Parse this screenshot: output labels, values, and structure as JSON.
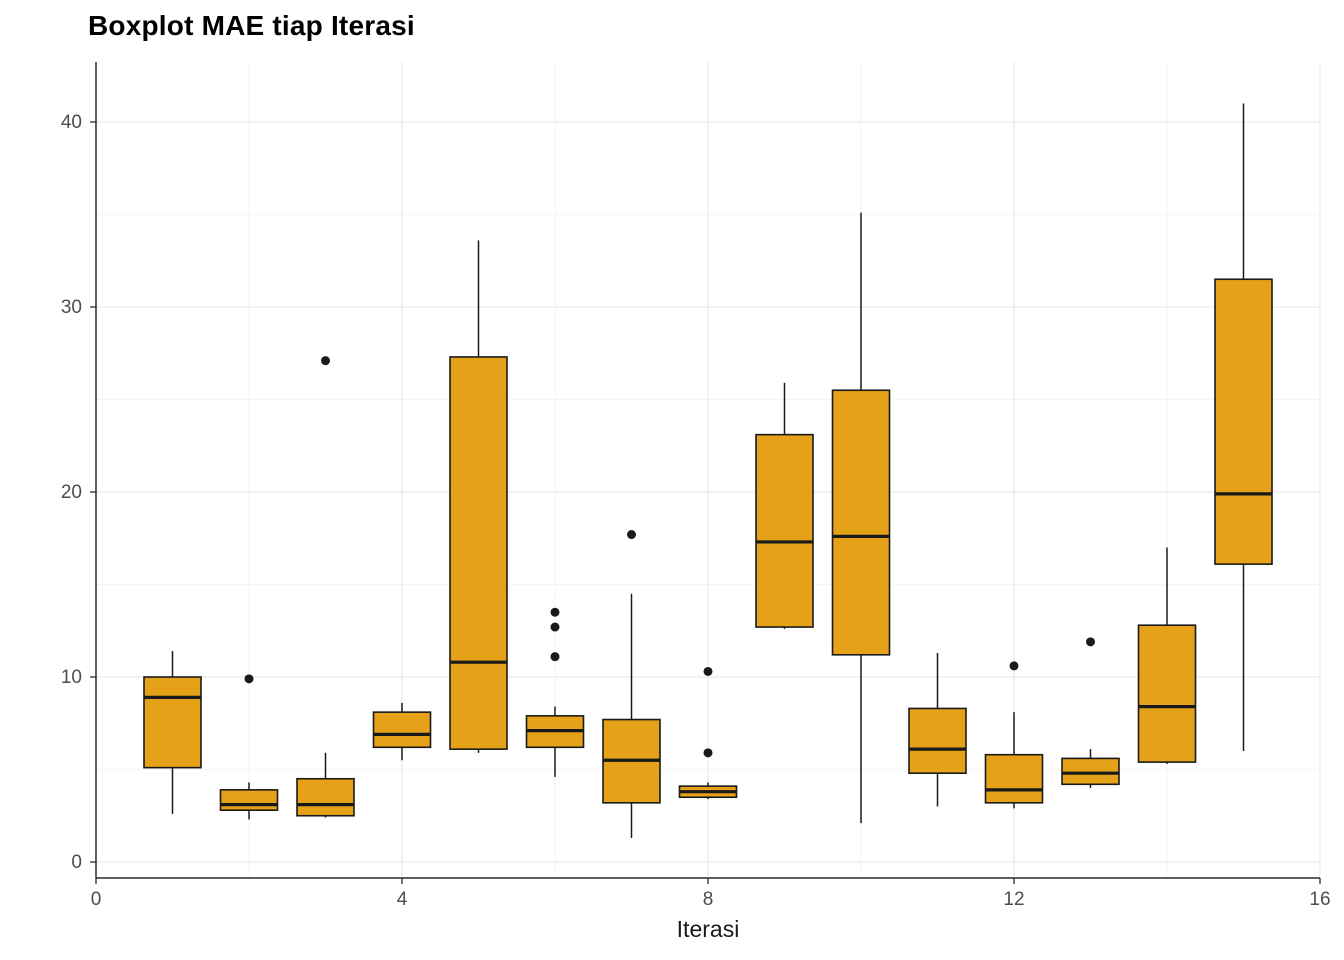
{
  "chart_data": {
    "type": "boxplot",
    "title": "Boxplot MAE tiap Iterasi",
    "xlabel": "Iterasi",
    "ylabel": "",
    "xlim": [
      0,
      16
    ],
    "ylim": [
      0,
      43
    ],
    "x_ticks": [
      0,
      4,
      8,
      12,
      16
    ],
    "y_ticks": [
      0,
      10,
      20,
      30,
      40
    ],
    "grid": "on",
    "legend": "none",
    "box_fill": "#E5A117",
    "box_stroke": "#1A1A1A",
    "outlier_color": "#1A1A1A",
    "boxes": [
      {
        "x": 1,
        "low": 2.6,
        "q1": 5.1,
        "median": 8.9,
        "q3": 10.0,
        "high": 11.4,
        "outliers": []
      },
      {
        "x": 2,
        "low": 2.3,
        "q1": 2.8,
        "median": 3.1,
        "q3": 3.9,
        "high": 4.3,
        "outliers": [
          9.9
        ]
      },
      {
        "x": 3,
        "low": 2.4,
        "q1": 2.5,
        "median": 3.1,
        "q3": 4.5,
        "high": 5.9,
        "outliers": [
          27.1
        ]
      },
      {
        "x": 4,
        "low": 5.5,
        "q1": 6.2,
        "median": 6.9,
        "q3": 8.1,
        "high": 8.6,
        "outliers": []
      },
      {
        "x": 5,
        "low": 5.9,
        "q1": 6.1,
        "median": 10.8,
        "q3": 27.3,
        "high": 33.6,
        "outliers": []
      },
      {
        "x": 6,
        "low": 4.6,
        "q1": 6.2,
        "median": 7.1,
        "q3": 7.9,
        "high": 8.4,
        "outliers": [
          11.1,
          12.7,
          13.5
        ]
      },
      {
        "x": 7,
        "low": 1.3,
        "q1": 3.2,
        "median": 5.5,
        "q3": 7.7,
        "high": 14.5,
        "outliers": [
          17.7
        ]
      },
      {
        "x": 8,
        "low": 3.4,
        "q1": 3.5,
        "median": 3.8,
        "q3": 4.1,
        "high": 4.3,
        "outliers": [
          5.9,
          10.3
        ]
      },
      {
        "x": 9,
        "low": 12.6,
        "q1": 12.7,
        "median": 17.3,
        "q3": 23.1,
        "high": 25.9,
        "outliers": []
      },
      {
        "x": 10,
        "low": 2.1,
        "q1": 11.2,
        "median": 17.6,
        "q3": 25.5,
        "high": 35.1,
        "outliers": []
      },
      {
        "x": 11,
        "low": 3.0,
        "q1": 4.8,
        "median": 6.1,
        "q3": 8.3,
        "high": 11.3,
        "outliers": []
      },
      {
        "x": 12,
        "low": 2.9,
        "q1": 3.2,
        "median": 3.9,
        "q3": 5.8,
        "high": 8.1,
        "outliers": [
          10.6
        ]
      },
      {
        "x": 13,
        "low": 4.0,
        "q1": 4.2,
        "median": 4.8,
        "q3": 5.6,
        "high": 6.1,
        "outliers": [
          11.9
        ]
      },
      {
        "x": 14,
        "low": 5.3,
        "q1": 5.4,
        "median": 8.4,
        "q3": 12.8,
        "high": 17.0,
        "outliers": []
      },
      {
        "x": 15,
        "low": 6.0,
        "q1": 16.1,
        "median": 19.9,
        "q3": 31.5,
        "high": 41.0,
        "outliers": []
      }
    ]
  }
}
